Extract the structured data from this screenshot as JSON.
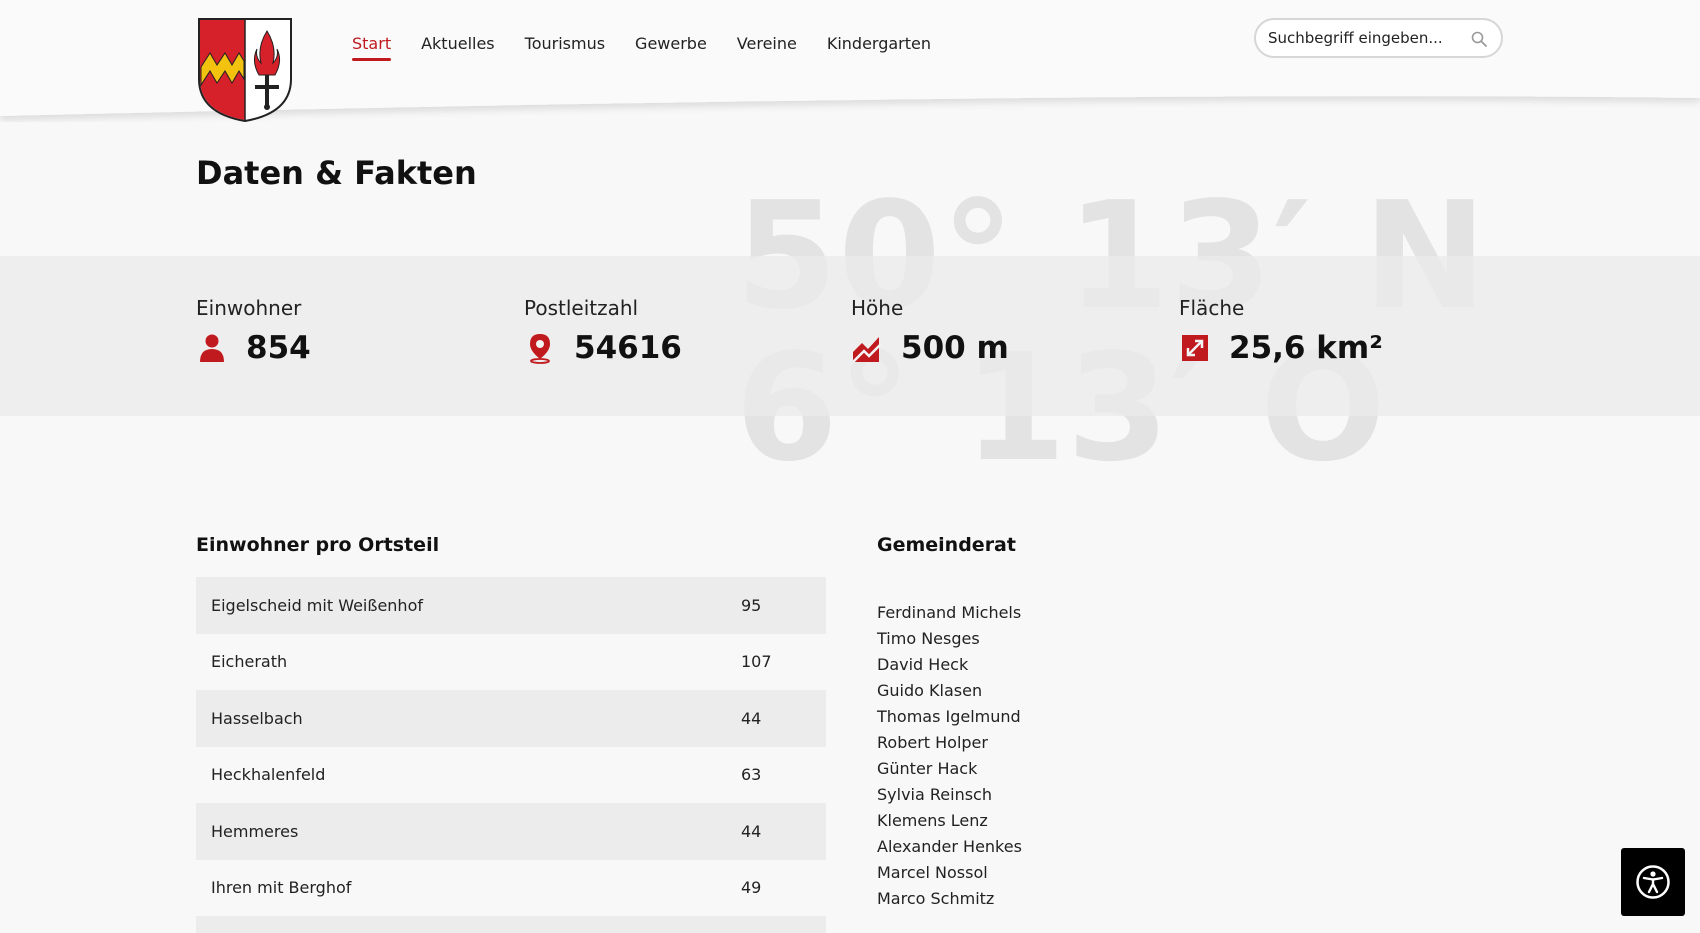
{
  "nav": {
    "items": [
      {
        "label": "Start",
        "active": true
      },
      {
        "label": "Aktuelles",
        "active": false
      },
      {
        "label": "Tourismus",
        "active": false
      },
      {
        "label": "Gewerbe",
        "active": false
      },
      {
        "label": "Vereine",
        "active": false
      },
      {
        "label": "Kindergarten",
        "active": false
      }
    ]
  },
  "search": {
    "placeholder": "Suchbegriff eingeben...",
    "icon": "search-icon"
  },
  "page": {
    "title": "Daten & Fakten"
  },
  "coordinates": {
    "latitude": "50° 13′ N",
    "longitude": "6° 13′ O"
  },
  "facts": [
    {
      "label": "Einwohner",
      "value": "854",
      "icon": "person-icon"
    },
    {
      "label": "Postleitzahl",
      "value": "54616",
      "icon": "map-pin-icon"
    },
    {
      "label": "Höhe",
      "value": "500 m",
      "icon": "elevation-chart-icon"
    },
    {
      "label": "Fläche",
      "value": "25,6 km²",
      "icon": "area-expand-icon"
    }
  ],
  "ortsteile": {
    "title": "Einwohner pro Ortsteil",
    "rows": [
      {
        "name": "Eigelscheid mit Weißenhof",
        "count": "95"
      },
      {
        "name": "Eicherath",
        "count": "107"
      },
      {
        "name": "Hasselbach",
        "count": "44"
      },
      {
        "name": "Heckhalenfeld",
        "count": "63"
      },
      {
        "name": "Hemmeres",
        "count": "44"
      },
      {
        "name": "Ihren mit Berghof",
        "count": "49"
      }
    ]
  },
  "gemeinderat": {
    "title": "Gemeinderat",
    "members": [
      "Ferdinand Michels",
      "Timo Nesges",
      "David Heck",
      "Guido Klasen",
      "Thomas Igelmund",
      "Robert Holper",
      "Günter Hack",
      "Sylvia Reinsch",
      "Klemens Lenz",
      "Alexander Henkes",
      "Marcel Nossol",
      "Marco Schmitz"
    ]
  },
  "accessibility": {
    "icon": "accessibility-icon"
  },
  "colors": {
    "accent": "#c01a1f",
    "band": "#ebebeb",
    "background": "#f8f8f8"
  }
}
